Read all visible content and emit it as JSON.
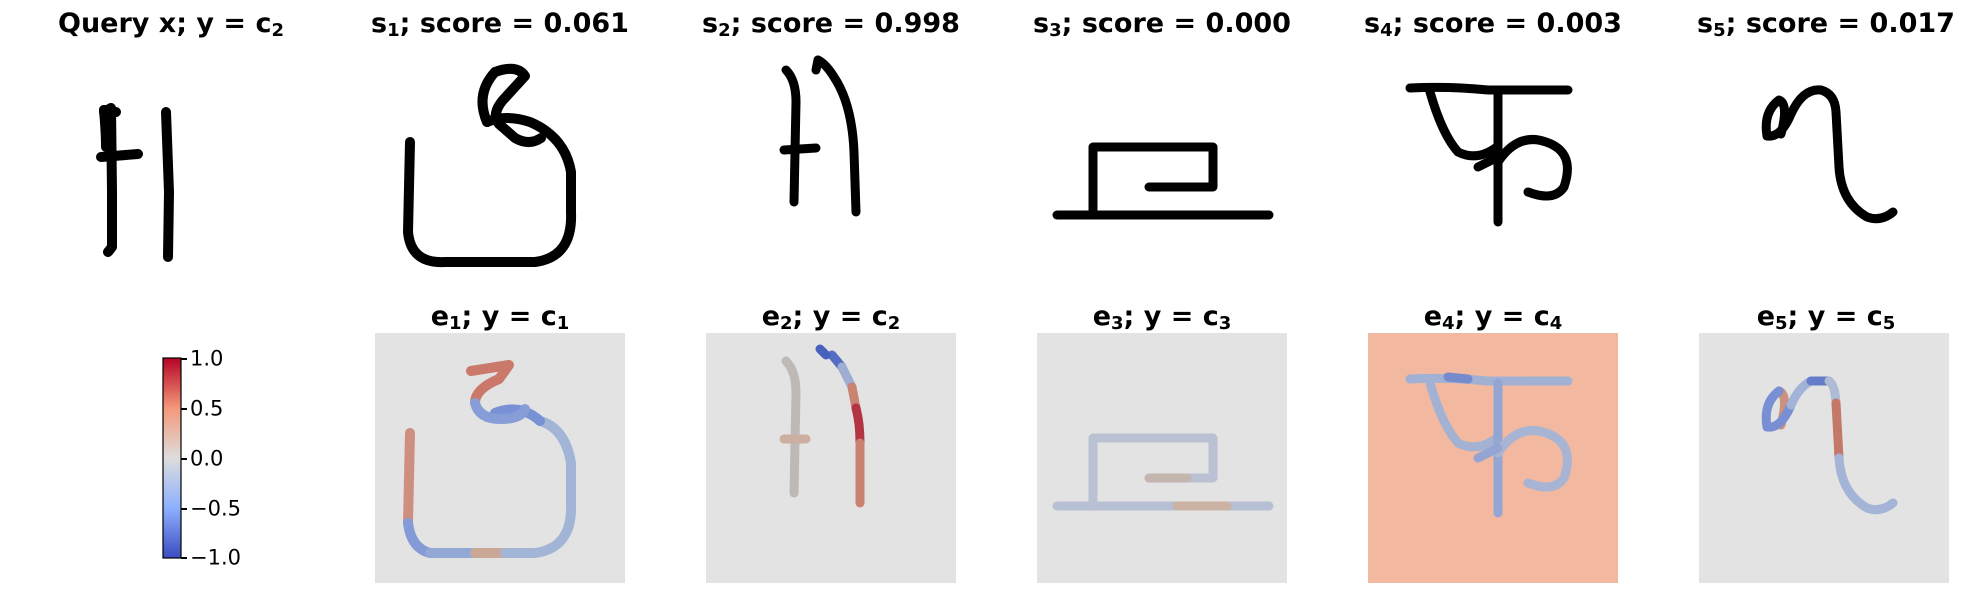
{
  "top_row": {
    "query": {
      "label": "Query x; y = c",
      "sub": "2"
    },
    "samples": [
      {
        "name": "s",
        "sub": "1",
        "score_text": "; score = 0.061"
      },
      {
        "name": "s",
        "sub": "2",
        "score_text": "; score = 0.998"
      },
      {
        "name": "s",
        "sub": "3",
        "score_text": "; score = 0.000"
      },
      {
        "name": "s",
        "sub": "4",
        "score_text": "; score = 0.003"
      },
      {
        "name": "s",
        "sub": "5",
        "score_text": "; score = 0.017"
      }
    ]
  },
  "bottom_row": {
    "explanations": [
      {
        "name": "e",
        "sub": "1",
        "mid": "; y = c",
        "sub2": "1"
      },
      {
        "name": "e",
        "sub": "2",
        "mid": "; y = c",
        "sub2": "2"
      },
      {
        "name": "e",
        "sub": "3",
        "mid": "; y = c",
        "sub2": "3"
      },
      {
        "name": "e",
        "sub": "4",
        "mid": "; y = c",
        "sub2": "4"
      },
      {
        "name": "e",
        "sub": "5",
        "mid": "; y = c",
        "sub2": "5"
      }
    ]
  },
  "colorbar": {
    "colormap": "coolwarm",
    "range": [
      -1.0,
      1.0
    ],
    "ticks": [
      "1.0",
      "0.5",
      "0.0",
      "−0.5",
      "−1.0"
    ],
    "tick_values": [
      1.0,
      0.5,
      0.0,
      -0.5,
      -1.0
    ]
  },
  "colors": {
    "neutral_bg": "#e3e3e3",
    "e4_bg": "#f2b9a0",
    "ink": "#000000",
    "stroke_blue": "#8fa6d0",
    "stroke_red": "#c97a66"
  }
}
